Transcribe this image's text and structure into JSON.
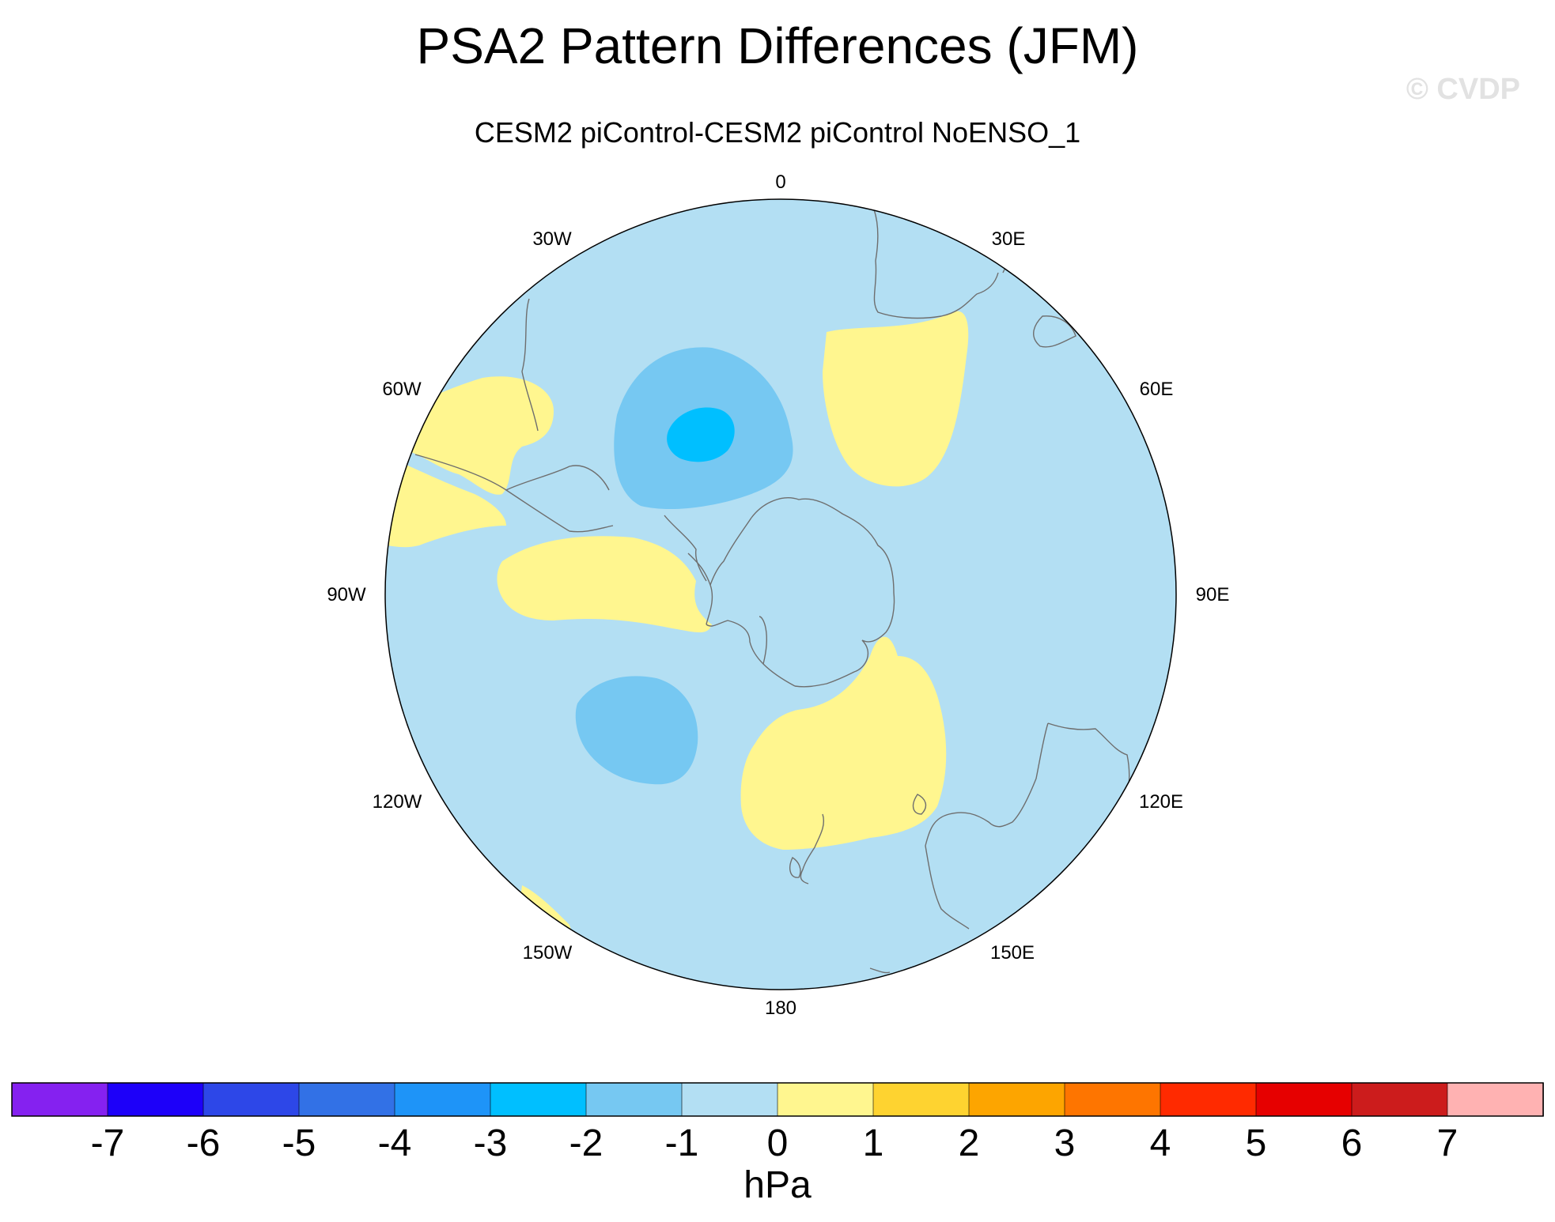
{
  "title": "PSA2 Pattern Differences (JFM)",
  "watermark": "© CVDP",
  "subtitle": "CESM2 piControl-CESM2 piControl NoENSO_1",
  "longitude_labels": [
    "0",
    "30E",
    "60E",
    "90E",
    "120E",
    "150E",
    "180",
    "150W",
    "120W",
    "90W",
    "60W",
    "30W"
  ],
  "colorbar": {
    "units": "hPa",
    "colors": [
      "#8521f0",
      "#1d00f9",
      "#2d47e8",
      "#3271e6",
      "#1e94f8",
      "#00bfff",
      "#76c8f2",
      "#b3dff3",
      "#fff68f",
      "#fed330",
      "#fda500",
      "#fe7500",
      "#ff2a00",
      "#e60000",
      "#cc1c1c",
      "#ffb2b2"
    ],
    "ticks": [
      "-7",
      "-6",
      "-5",
      "-4",
      "-3",
      "-2",
      "-1",
      "0",
      "1",
      "2",
      "3",
      "4",
      "5",
      "6",
      "7"
    ]
  },
  "legend_colors": {
    "background": "#b3dff3",
    "positive_0_1": "#fff68f",
    "negative_1_2": "#76c8f2",
    "negative_2_3": "#00bfff"
  }
}
